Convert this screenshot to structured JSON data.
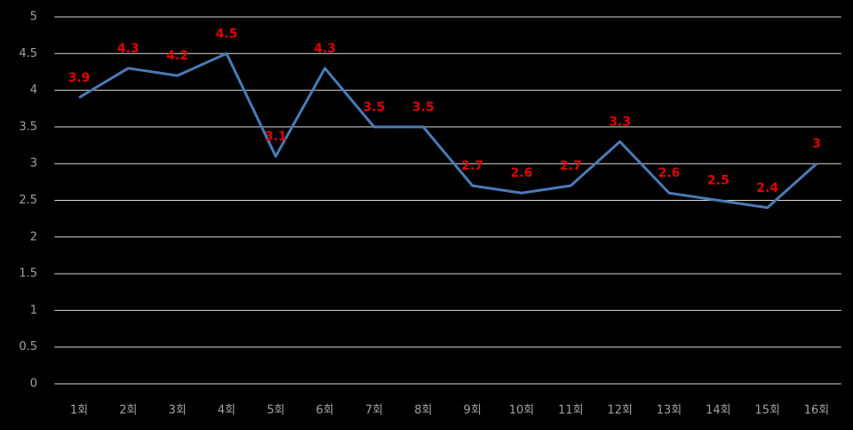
{
  "chart_data": {
    "type": "line",
    "categories": [
      "1회",
      "2회",
      "3회",
      "4회",
      "5회",
      "6회",
      "7회",
      "8회",
      "9회",
      "10회",
      "11회",
      "12회",
      "13회",
      "14회",
      "15회",
      "16회"
    ],
    "values": [
      3.9,
      4.3,
      4.2,
      4.5,
      3.1,
      4.3,
      3.5,
      3.5,
      2.7,
      2.6,
      2.7,
      3.3,
      2.6,
      2.5,
      2.4,
      3
    ],
    "color": "#4a7ab5",
    "label_color": "#e00000",
    "ylim": [
      0,
      5
    ],
    "yticks": [
      0,
      0.5,
      1,
      1.5,
      2,
      2.5,
      3,
      3.5,
      4,
      4.5,
      5
    ],
    "grid": true
  }
}
